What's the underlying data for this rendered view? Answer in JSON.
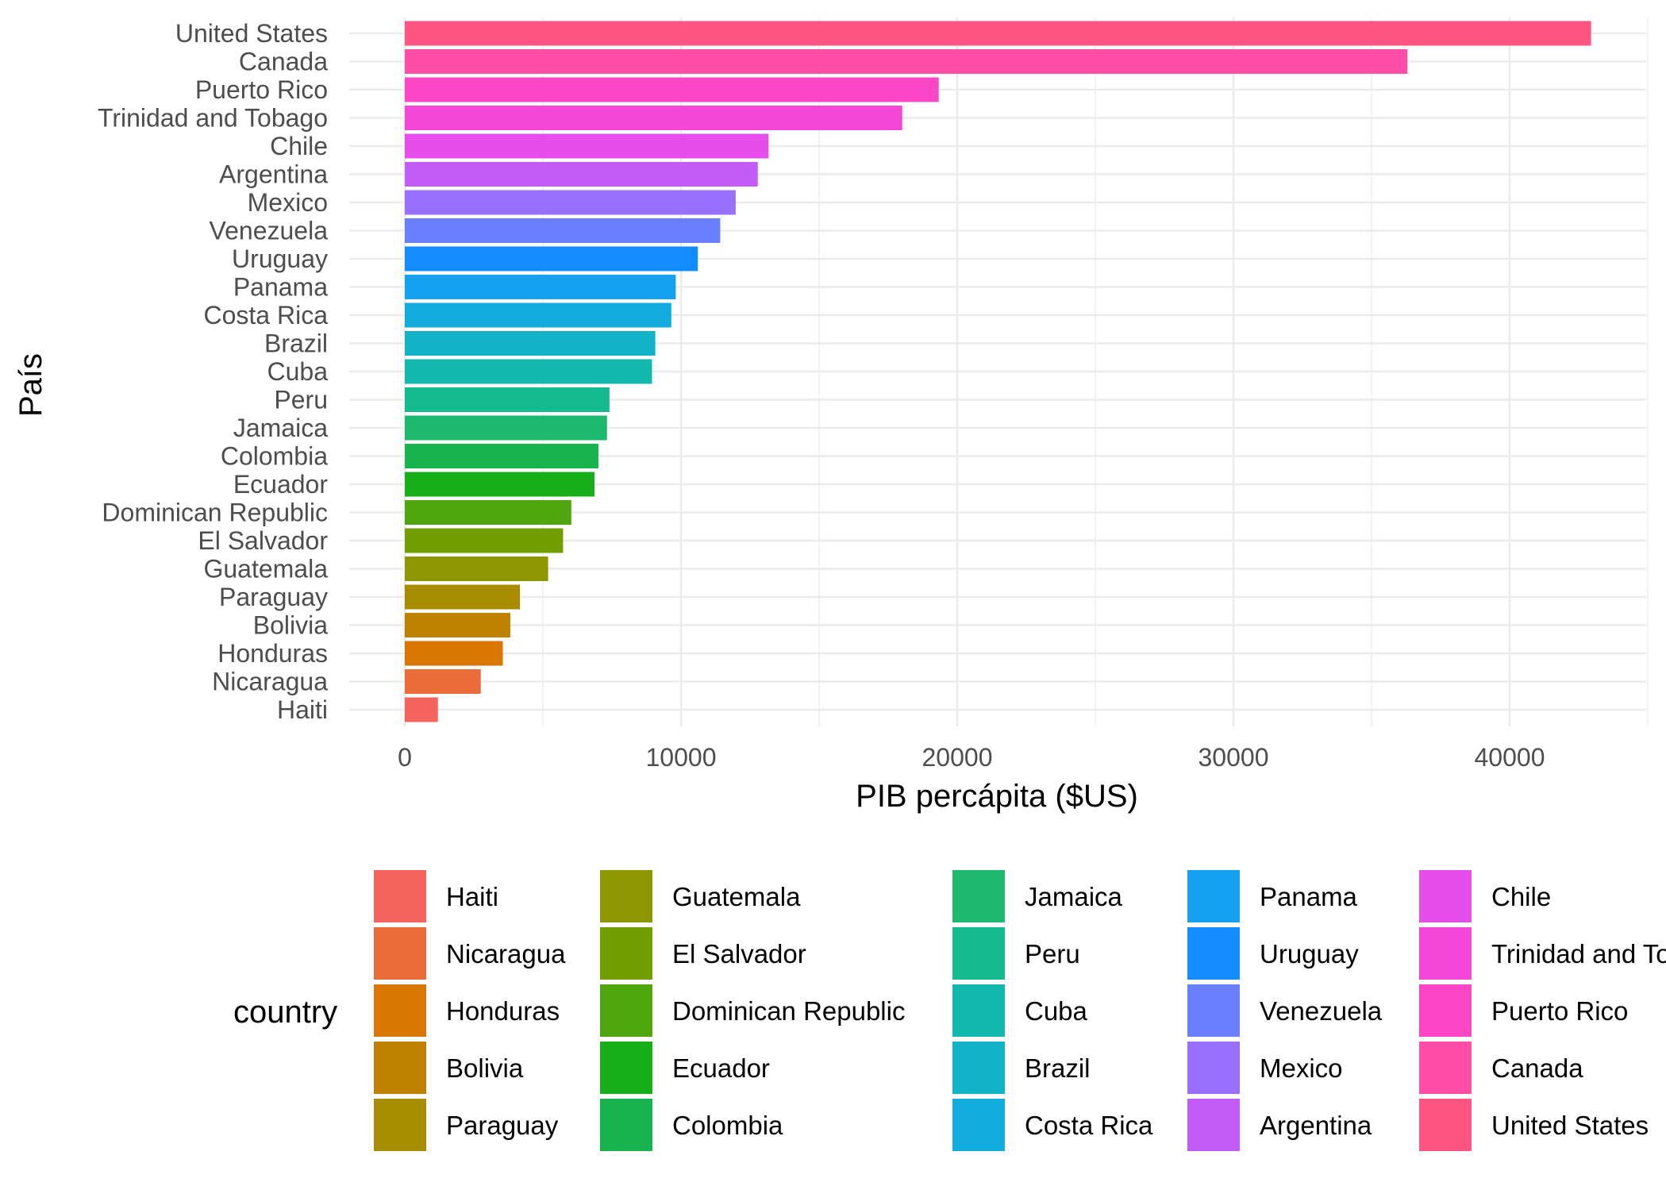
{
  "chart_data": {
    "type": "bar",
    "orientation": "horizontal",
    "title": "",
    "xlabel": "PIB percápita ($US)",
    "ylabel": "País",
    "xlim": [
      0,
      45000
    ],
    "x_ticks": [
      "0",
      "10000",
      "20000",
      "30000",
      "40000"
    ],
    "grid": true,
    "legend_title": "country",
    "legend_position": "bottom",
    "bars": [
      {
        "country": "United States",
        "value": 42950,
        "color": "#FF5582"
      },
      {
        "country": "Canada",
        "value": 36300,
        "color": "#FF4DA8"
      },
      {
        "country": "Puerto Rico",
        "value": 19330,
        "color": "#FB47C5"
      },
      {
        "country": "Trinidad and Tobago",
        "value": 18010,
        "color": "#F446D8"
      },
      {
        "country": "Chile",
        "value": 13170,
        "color": "#E64EEB"
      },
      {
        "country": "Argentina",
        "value": 12780,
        "color": "#C45DF7"
      },
      {
        "country": "Mexico",
        "value": 11980,
        "color": "#9B6FFD"
      },
      {
        "country": "Venezuela",
        "value": 11420,
        "color": "#6A7FFF"
      },
      {
        "country": "Uruguay",
        "value": 10610,
        "color": "#138CFF"
      },
      {
        "country": "Panama",
        "value": 9810,
        "color": "#15A1F0"
      },
      {
        "country": "Costa Rica",
        "value": 9650,
        "color": "#14ACDE"
      },
      {
        "country": "Brazil",
        "value": 9070,
        "color": "#13B3C8"
      },
      {
        "country": "Cuba",
        "value": 8950,
        "color": "#14B9AD"
      },
      {
        "country": "Peru",
        "value": 7410,
        "color": "#16BA8F"
      },
      {
        "country": "Jamaica",
        "value": 7320,
        "color": "#1BB86E"
      },
      {
        "country": "Colombia",
        "value": 7010,
        "color": "#17B34C"
      },
      {
        "country": "Ecuador",
        "value": 6870,
        "color": "#18AE1B"
      },
      {
        "country": "Dominican Republic",
        "value": 6030,
        "color": "#4FA60E"
      },
      {
        "country": "El Salvador",
        "value": 5730,
        "color": "#729E00"
      },
      {
        "country": "Guatemala",
        "value": 5190,
        "color": "#8D9700"
      },
      {
        "country": "Paraguay",
        "value": 4170,
        "color": "#A98D00"
      },
      {
        "country": "Bolivia",
        "value": 3820,
        "color": "#C18100"
      },
      {
        "country": "Honduras",
        "value": 3550,
        "color": "#DA7602"
      },
      {
        "country": "Nicaragua",
        "value": 2750,
        "color": "#EA6C39"
      },
      {
        "country": "Haiti",
        "value": 1200,
        "color": "#F5635D"
      }
    ],
    "legend_columns": [
      [
        "Haiti",
        "Nicaragua",
        "Honduras",
        "Bolivia",
        "Paraguay"
      ],
      [
        "Guatemala",
        "El Salvador",
        "Dominican Republic",
        "Ecuador",
        "Colombia"
      ],
      [
        "Jamaica",
        "Peru",
        "Cuba",
        "Brazil",
        "Costa Rica"
      ],
      [
        "Panama",
        "Uruguay",
        "Venezuela",
        "Mexico",
        "Argentina"
      ],
      [
        "Chile",
        "Trinidad and Tobago",
        "Puerto Rico",
        "Canada",
        "United States"
      ]
    ]
  }
}
